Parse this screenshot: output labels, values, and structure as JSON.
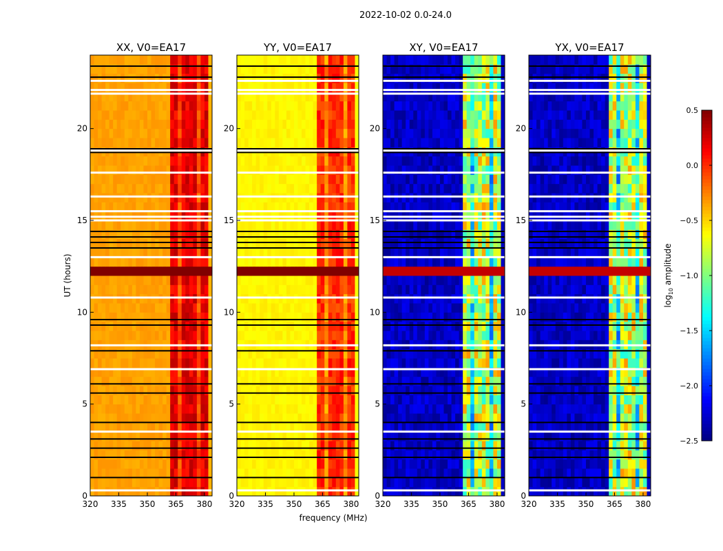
{
  "chart_data": {
    "type": "heatmap",
    "title": "2022-10-02 0.0-24.0",
    "xlabel": "frequency (MHz)",
    "ylabel": "UT (hours)",
    "xlim": [
      320,
      384
    ],
    "ylim": [
      0,
      24
    ],
    "xticks": [
      "320",
      "335",
      "350",
      "365",
      "380"
    ],
    "yticks": [
      "0",
      "5",
      "10",
      "15",
      "20"
    ],
    "colorbar": {
      "label": "log10 amplitude",
      "label_main": "log",
      "label_sub": "10",
      "label_rest": " amplitude",
      "range": [
        -2.5,
        0.5
      ],
      "ticks": [
        "0.5",
        "0.0",
        "−0.5",
        "−1.0",
        "−1.5",
        "−2.0",
        "−2.5"
      ],
      "colormap": "jet"
    },
    "panels": [
      {
        "title": "XX, V0=EA17",
        "low_band_value": -0.35,
        "high_band_value": 0.2,
        "high_band_range_mhz": [
          362,
          381
        ],
        "variability": 0.15
      },
      {
        "title": "YY, V0=EA17",
        "low_band_value": -0.6,
        "high_band_value": 0.0,
        "high_band_range_mhz": [
          362,
          381
        ],
        "variability": 0.15
      },
      {
        "title": "XY, V0=EA17",
        "low_band_value": -2.3,
        "high_band_value": -0.8,
        "high_band_range_mhz": [
          362,
          381
        ],
        "variability": 0.5
      },
      {
        "title": "YX, V0=EA17",
        "low_band_value": -2.3,
        "high_band_value": -0.8,
        "high_band_range_mhz": [
          362,
          381
        ],
        "variability": 0.5
      }
    ],
    "flagged_hours": [
      0.3,
      3.5,
      6.9,
      8.2,
      10.8,
      13.0,
      15.0,
      15.2,
      15.5,
      16.3,
      17.6,
      18.8,
      21.9,
      22.1,
      22.6
    ],
    "bright_rfi_band_hours": [
      12.0,
      12.5
    ],
    "separator_hours": [
      1.0,
      2.1,
      2.6,
      3.1,
      4.0,
      5.6,
      6.1,
      7.9,
      9.3,
      9.6,
      13.5,
      13.8,
      14.1,
      14.4,
      18.7,
      18.9,
      22.8,
      23.4
    ]
  }
}
